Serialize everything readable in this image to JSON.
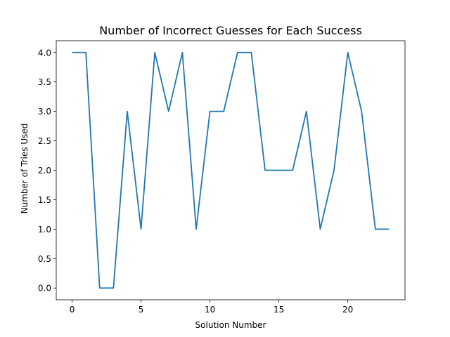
{
  "chart_data": {
    "type": "line",
    "title": "Number of Incorrect Guesses for Each Success",
    "xlabel": "Solution Number",
    "ylabel": "Number of Tries Used",
    "xlim": [
      -1.15,
      24.15
    ],
    "ylim": [
      -0.2,
      4.2
    ],
    "xticks": [
      0,
      5,
      10,
      15,
      20
    ],
    "xtick_labels": [
      "0",
      "5",
      "10",
      "15",
      "20"
    ],
    "yticks": [
      0,
      0.5,
      1,
      1.5,
      2,
      2.5,
      3,
      3.5,
      4
    ],
    "ytick_labels": [
      "0.0",
      "0.5",
      "1.0",
      "1.5",
      "2.0",
      "2.5",
      "3.0",
      "3.5",
      "4.0"
    ],
    "grid": false,
    "series": [
      {
        "color": "#1f77b4",
        "x": [
          0,
          1,
          2,
          3,
          4,
          5,
          6,
          7,
          8,
          9,
          10,
          11,
          12,
          13,
          14,
          15,
          16,
          17,
          18,
          19,
          20,
          21,
          22,
          23
        ],
        "values": [
          4,
          4,
          0,
          0,
          3,
          1,
          4,
          3,
          4,
          1,
          3,
          3,
          4,
          4,
          2,
          2,
          2,
          3,
          1,
          2,
          4,
          3,
          1,
          1
        ]
      }
    ]
  }
}
